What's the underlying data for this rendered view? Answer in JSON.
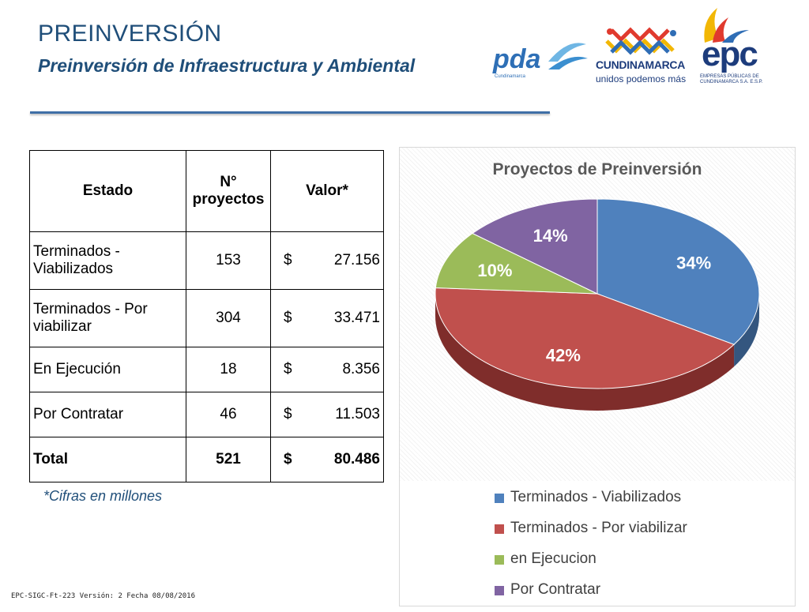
{
  "header": {
    "title": "PREINVERSIÓN",
    "subtitle": "Preinversión de Infraestructura y Ambiental"
  },
  "logos": {
    "pda": {
      "text": "pda",
      "sub": "Cundinamarca"
    },
    "cundinamarca": {
      "name": "CUNDINAMARCA",
      "slogan": "unidos podemos más"
    },
    "epc": {
      "text": "epc",
      "sub": "EMPRESAS PÚBLICAS DE CUNDINAMARCA S.A. E.S.P."
    }
  },
  "table": {
    "headers": {
      "estado": "Estado",
      "num": "N° proyectos",
      "valor": "Valor*"
    },
    "rows": [
      {
        "estado": "Terminados - Viabilizados",
        "num": "153",
        "currency": "$",
        "valor": "27.156"
      },
      {
        "estado": "Terminados - Por viabilizar",
        "num": "304",
        "currency": "$",
        "valor": "33.471"
      },
      {
        "estado": "En Ejecución",
        "num": "18",
        "currency": "$",
        "valor": "8.356"
      },
      {
        "estado": "Por Contratar",
        "num": "46",
        "currency": "$",
        "valor": "11.503"
      }
    ],
    "total": {
      "estado": "Total",
      "num": "521",
      "currency": "$",
      "valor": "80.486"
    },
    "note": "*Cifras en millones"
  },
  "footer": "EPC-SIGC-Ft-223 Versión: 2 Fecha 08/08/2016",
  "chart_data": {
    "type": "pie",
    "title": "Proyectos de Preinversión",
    "categories": [
      "Terminados - Viabilizados",
      "Terminados - Por viabilizar",
      "en Ejecucion",
      "Por Contratar"
    ],
    "values": [
      34,
      42,
      10,
      14
    ],
    "labels": [
      "34%",
      "42%",
      "10%",
      "14%"
    ],
    "colors": [
      "#4f81bd",
      "#c0504d",
      "#9bbb59",
      "#8064a2"
    ],
    "side_colors": [
      "#34567f",
      "#7f2d2b",
      "#67803a",
      "#55406d"
    ],
    "legend_position": "bottom",
    "style": "3d"
  }
}
